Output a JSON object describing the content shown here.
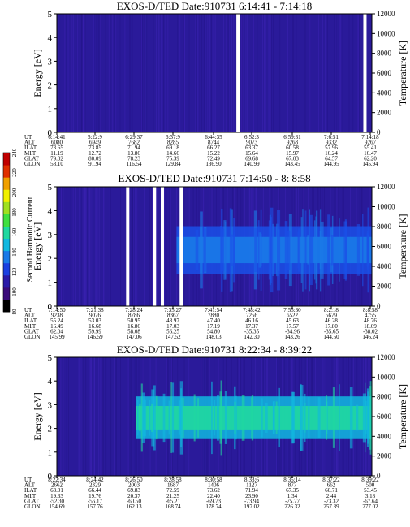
{
  "colors": {
    "background": "#2a1a9a",
    "colorbar": [
      "#000000",
      "#3a0a7a",
      "#2a1aa8",
      "#1a40e0",
      "#1a7ae8",
      "#10b8e0",
      "#20d8a0",
      "#40e040",
      "#a0e020",
      "#f0f000",
      "#f0a000",
      "#e03000",
      "#c00000"
    ]
  },
  "colorbar": {
    "label": "Second Harmonic Current",
    "ticks": [
      "80",
      "100",
      "120",
      "140",
      "160",
      "180",
      "200",
      "220",
      "240"
    ]
  },
  "table_row_labels": [
    "UT",
    "ALT",
    "ILAT",
    "MLT",
    "GLAT",
    "GLON"
  ],
  "chart_data": [
    {
      "type": "heatmap",
      "title": "EXOS-D/TED   Date:910731   6:14:41 - 7:14:18",
      "ylabel": "Energy [eV]",
      "ylabel_right": "Temperature [K]",
      "ylim": [
        0,
        5
      ],
      "yticks": [
        "0",
        "1",
        "2",
        "3",
        "4",
        "5"
      ],
      "ylim_right": [
        0,
        12000
      ],
      "yticks_right": [
        "0",
        "2000",
        "4000",
        "6000",
        "8000",
        "10000",
        "12000"
      ],
      "gaps_x_fraction": [
        0.575,
        0.978
      ],
      "features": [],
      "columns": [
        [
          "6:14:41",
          "6080",
          "73.65",
          "11.19",
          "79.02",
          "58.10"
        ],
        [
          "6:22:9",
          "6949",
          "73.85",
          "12.72",
          "80.09",
          "91.94"
        ],
        [
          "6:29:37",
          "7682",
          "71.94",
          "13.86",
          "78.23",
          "116.54"
        ],
        [
          "6:37:9",
          "8285",
          "69.18",
          "14.66",
          "75.39",
          "129.84"
        ],
        [
          "6:44:35",
          "8744",
          "66.27",
          "15.22",
          "72.49",
          "136.90"
        ],
        [
          "6:52:3",
          "9073",
          "63.37",
          "15.64",
          "69.68",
          "140.99"
        ],
        [
          "6:59:31",
          "9268",
          "60.58",
          "15.97",
          "67.03",
          "143.45"
        ],
        [
          "7:6:51",
          "9332",
          "57.96",
          "16.24",
          "64.57",
          "144.95"
        ],
        [
          "7:14:18",
          "9267",
          "55.41",
          "16.47",
          "62.20",
          "145.94"
        ]
      ]
    },
    {
      "type": "heatmap",
      "title": "EXOS-D/TED   Date:910731   7:14:50 - 8: 8:58",
      "ylabel": "Energy [eV]",
      "ylabel_right": "Temperature [K]",
      "ylim": [
        0,
        5
      ],
      "yticks": [
        "0",
        "1",
        "2",
        "3",
        "4",
        "5"
      ],
      "ylim_right": [
        0,
        12000
      ],
      "yticks_right": [
        "0",
        "2000",
        "4000",
        "6000",
        "8000",
        "10000",
        "12000"
      ],
      "gaps_x_fraction": [
        0.225,
        0.31,
        0.335,
        0.395
      ],
      "features": [
        {
          "kind": "band",
          "x_from": 0.38,
          "x_to": 1.0,
          "y_center_ev": 2.35,
          "half_width_ev": 1.0,
          "colors": [
            "#1a50e8",
            "#1a7ae8",
            "#1a50e8"
          ]
        }
      ],
      "columns": [
        [
          "7:14:50",
          "9238",
          "55.24",
          "16.49",
          "62.04",
          "145.99"
        ],
        [
          "7:21:38",
          "9076",
          "53.03",
          "16.68",
          "59.99",
          "146.59"
        ],
        [
          "7:28:24",
          "8786",
          "50.95",
          "16.86",
          "58.08",
          "147.06"
        ],
        [
          "7:35:27",
          "8367",
          "48.97",
          "17.03",
          "56.25",
          "147.52"
        ],
        [
          "7:41:54",
          "7880",
          "47.40",
          "17.19",
          "54.80",
          "148.03"
        ],
        [
          "7:48:42",
          "7256",
          "46.16",
          "17.37",
          "-35.35",
          "142.30"
        ],
        [
          "7:55:30",
          "6522",
          "45.63",
          "17.57",
          "-34.96",
          "143.26"
        ],
        [
          "8:2:18",
          "5679",
          "46.28",
          "17.80",
          "-35.65",
          "144.50"
        ],
        [
          "8:8:58",
          "4755",
          "48.76",
          "18.09",
          "-38.02",
          "146.24"
        ]
      ]
    },
    {
      "type": "heatmap",
      "title": "EXOS-D/TED   Date:910731   8:22:34 - 8:39:22",
      "ylabel": "Energy [eV]",
      "ylabel_right": "Temperature [K]",
      "ylim": [
        0,
        5
      ],
      "yticks": [
        "0",
        "1",
        "2",
        "3",
        "4",
        "5"
      ],
      "ylim_right": [
        0,
        12000
      ],
      "yticks_right": [
        "0",
        "2000",
        "4000",
        "6000",
        "8000",
        "10000",
        "12000"
      ],
      "gaps_x_fraction": [],
      "features": [
        {
          "kind": "band",
          "x_from": 0.25,
          "x_to": 1.0,
          "y_center_ev": 2.45,
          "half_width_ev": 0.9,
          "colors": [
            "#10b8e0",
            "#20d8a0",
            "#10b8e0"
          ]
        }
      ],
      "columns": [
        [
          "8:22:34",
          "2662",
          "63.01",
          "19.33",
          "-52.30",
          "154.69"
        ],
        [
          "8:24:42",
          "2329",
          "66.44",
          "19.76",
          "-56.17",
          "157.76"
        ],
        [
          "8:26:50",
          "2003",
          "69.83",
          "20.37",
          "-60.50",
          "162.13"
        ],
        [
          "8:28:58",
          "1687",
          "72.59",
          "21.25",
          "-65.21",
          "168.74"
        ],
        [
          "8:30:58",
          "1406",
          "73.62",
          "22.40",
          "-69.73",
          "178.74"
        ],
        [
          "8:33:6",
          "1127",
          "71.94",
          "23.90",
          "-73.94",
          "197.02"
        ],
        [
          "8:35:14",
          "877",
          "67.35",
          "1.34",
          "-75.77",
          "226.32"
        ],
        [
          "8:37:22",
          "662",
          "60.71",
          "2.44",
          "-73.32",
          "257.39"
        ],
        [
          "8:39:22",
          "500",
          "53.45",
          "3.18",
          "-67.64",
          "277.02"
        ]
      ]
    }
  ]
}
